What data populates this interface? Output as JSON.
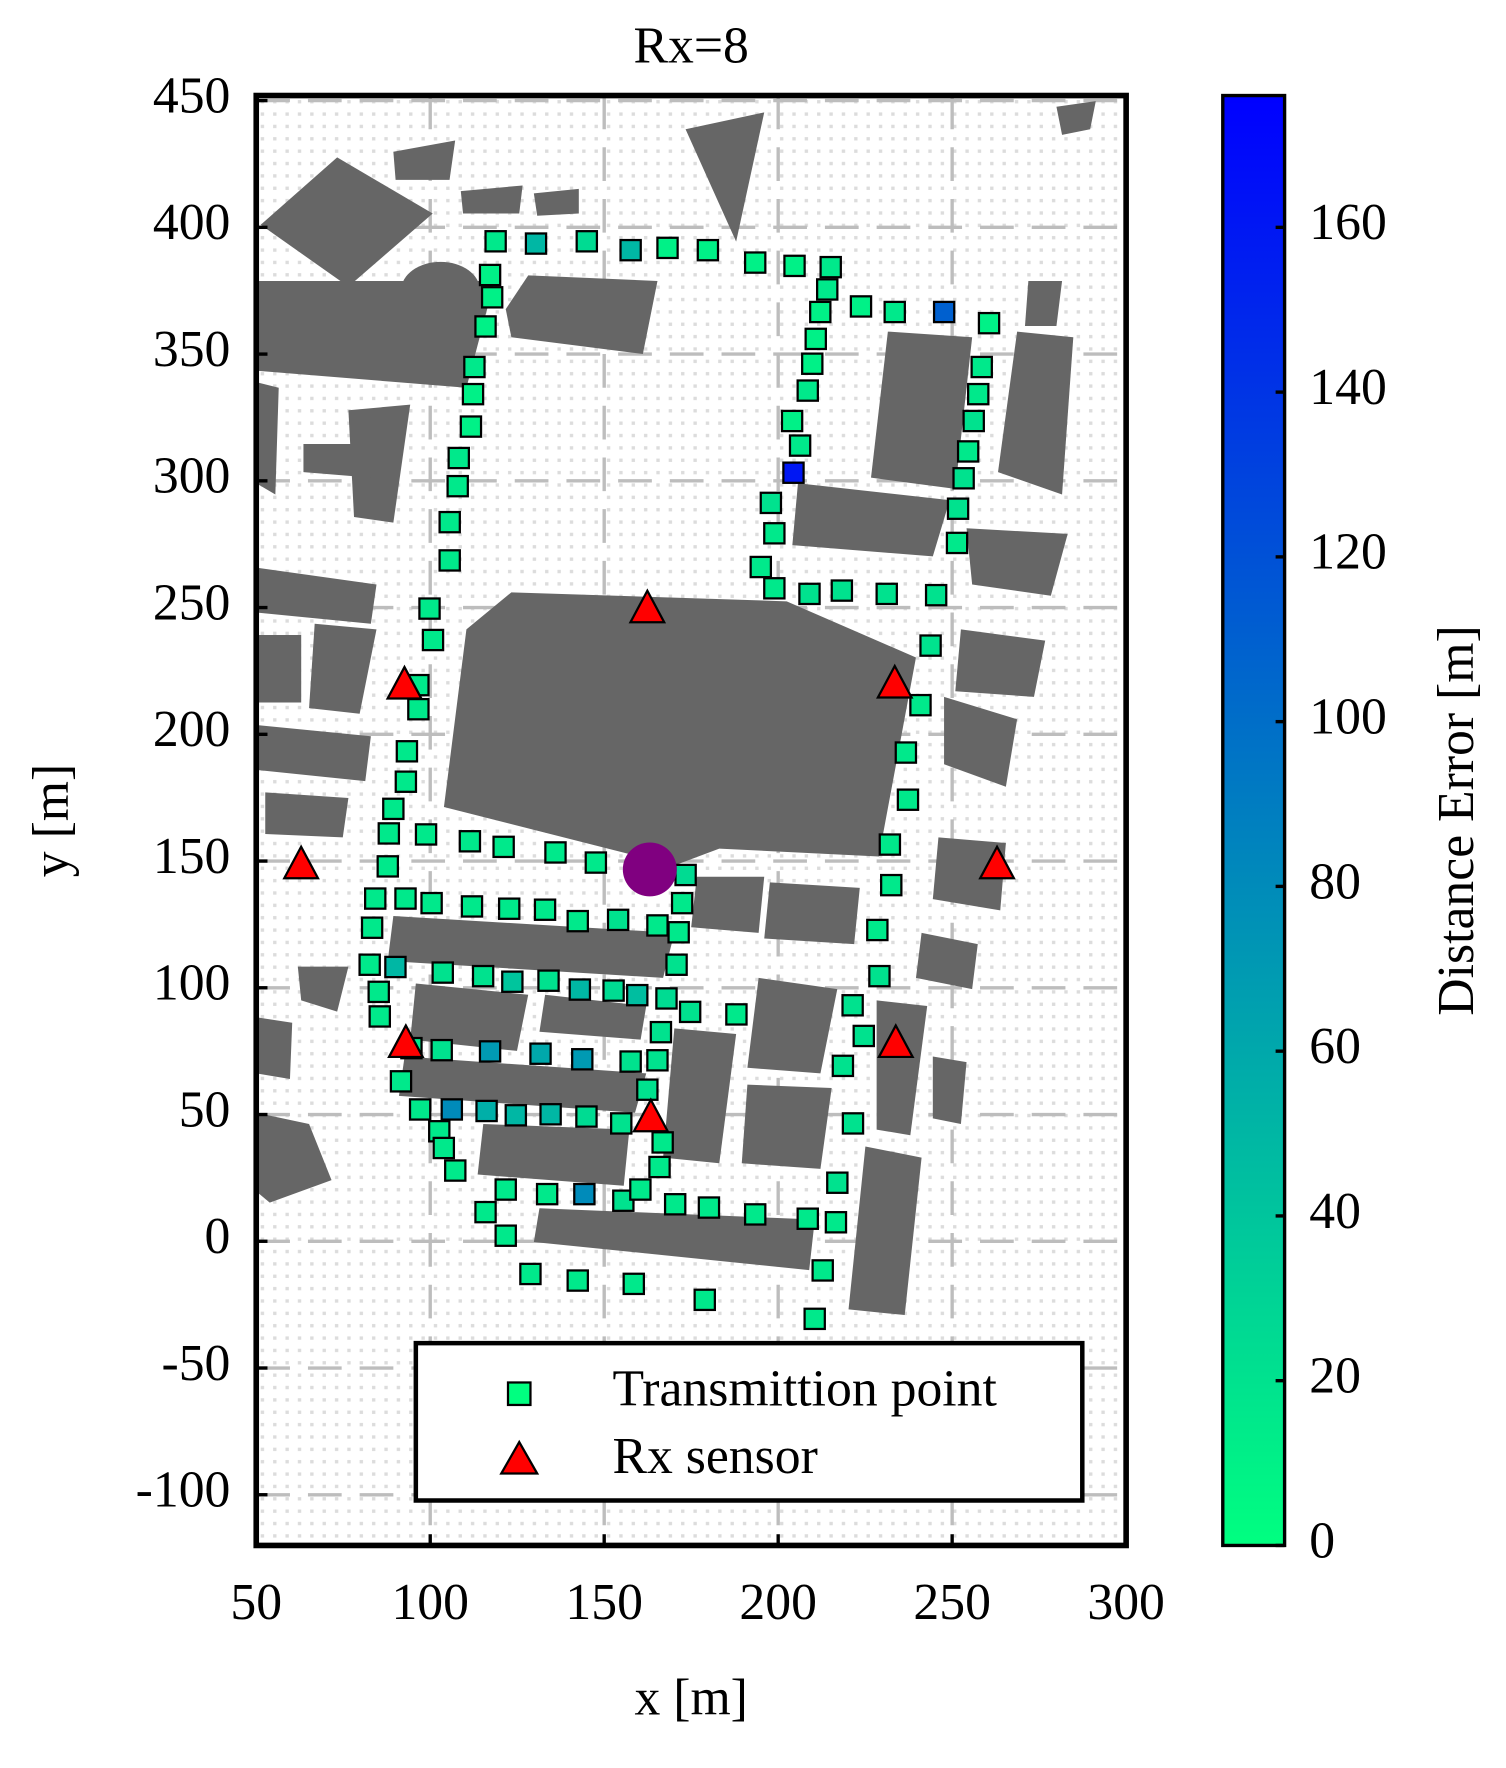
{
  "chart_data": {
    "type": "scatter",
    "title": "Rx=8",
    "x_label": "x [m]",
    "y_label": "y [m]",
    "colorbar_label": "Distance Error [m]",
    "xlim": [
      50,
      300
    ],
    "ylim": [
      -120,
      452
    ],
    "xticks": [
      50,
      100,
      150,
      200,
      250,
      300
    ],
    "yticks": [
      -100,
      -50,
      0,
      50,
      100,
      150,
      200,
      250,
      300,
      350,
      400,
      450
    ],
    "clim": [
      0,
      176
    ],
    "cticks": [
      0,
      20,
      40,
      60,
      80,
      100,
      120,
      140,
      160
    ],
    "colormap": [
      "#00ff80",
      "#0000ff"
    ],
    "grid": true,
    "legend": "lower right",
    "series": [
      {
        "name": "Transmittion point",
        "marker": "square",
        "x": [
          118.8,
          130.4,
          145.0,
          157.6,
          168.2,
          179.8,
          193.4,
          204.7,
          215.1,
          117.2,
          117.8,
          214.1,
          212.1,
          223.8,
          233.5,
          247.7,
          260.6,
          115.9,
          210.8,
          258.5,
          209.8,
          112.7,
          208.5,
          257.5,
          112.3,
          204.0,
          256.2,
          111.7,
          206.3,
          254.6,
          108.2,
          204.4,
          253.3,
          107.9,
          197.9,
          251.7,
          105.6,
          198.9,
          251.4,
          105.6,
          195.0,
          198.9,
          209.0,
          218.3,
          231.2,
          245.4,
          99.8,
          100.8,
          243.8,
          96.6,
          240.9,
          96.6,
          236.7,
          93.3,
          93.0,
          237.3,
          89.4,
          88.1,
          98.8,
          111.4,
          121.1,
          136.0,
          147.6,
          232.1,
          87.8,
          173.4,
          232.5,
          84.2,
          92.9,
          100.4,
          112.0,
          122.7,
          133.0,
          142.4,
          154.0,
          165.3,
          172.4,
          171.4,
          228.5,
          83.3,
          82.6,
          90.0,
          103.6,
          115.2,
          123.6,
          134.0,
          143.0,
          152.7,
          159.5,
          167.9,
          170.8,
          229.1,
          85.2,
          85.5,
          174.7,
          188.0,
          221.4,
          166.3,
          224.6,
          94.6,
          103.3,
          117.2,
          131.7,
          143.7,
          157.6,
          165.3,
          218.6,
          91.6,
          162.4,
          97.1,
          106.2,
          116.2,
          124.6,
          134.6,
          144.9,
          154.9,
          221.5,
          102.6,
          166.8,
          103.9,
          165.9,
          107.2,
          217.0,
          121.7,
          133.6,
          144.3,
          155.5,
          160.4,
          170.4,
          180.1,
          193.4,
          208.5,
          216.6,
          115.9,
          121.7,
          212.8,
          128.8,
          142.4,
          158.5,
          178.9,
          210.5
        ],
        "y": [
          394.5,
          393.6,
          394.5,
          391.0,
          391.9,
          391.0,
          386.1,
          384.8,
          384.3,
          381.2,
          372.4,
          375.5,
          366.6,
          368.8,
          366.6,
          366.6,
          362.2,
          360.9,
          356.0,
          344.9,
          346.2,
          344.9,
          335.6,
          334.2,
          334.2,
          323.6,
          323.6,
          321.4,
          313.9,
          311.6,
          309.0,
          303.2,
          301.0,
          297.9,
          291.3,
          289.0,
          283.7,
          279.3,
          275.5,
          268.6,
          266.0,
          257.6,
          255.4,
          256.7,
          255.4,
          254.9,
          249.6,
          237.2,
          235.0,
          219.4,
          211.5,
          209.9,
          192.8,
          193.3,
          181.3,
          174.2,
          170.6,
          160.9,
          160.5,
          157.8,
          155.6,
          153.4,
          149.4,
          156.5,
          147.9,
          144.5,
          140.5,
          135.2,
          135.2,
          133.4,
          132.1,
          131.2,
          130.8,
          126.3,
          126.8,
          124.6,
          133.4,
          121.9,
          122.8,
          123.7,
          109.1,
          108.2,
          106.0,
          104.6,
          102.4,
          102.8,
          99.3,
          98.9,
          97.1,
          95.8,
          109.1,
          104.6,
          98.4,
          88.7,
          90.5,
          89.5,
          93.1,
          82.5,
          81.0,
          76.2,
          75.4,
          74.9,
          74.0,
          71.8,
          70.9,
          71.4,
          69.2,
          63.1,
          59.8,
          52.0,
          52.0,
          51.4,
          49.7,
          50.1,
          49.2,
          46.5,
          46.5,
          43.4,
          39.0,
          36.8,
          29.3,
          27.9,
          23.1,
          20.4,
          18.6,
          18.6,
          16.0,
          20.4,
          14.6,
          13.3,
          10.6,
          8.9,
          7.5,
          11.5,
          2.2,
          -11.5,
          -12.9,
          -15.5,
          -16.8,
          -23.1,
          -30.6
        ],
        "error": [
          15,
          50,
          25,
          50,
          10,
          10,
          10,
          10,
          15,
          10,
          10,
          15,
          10,
          10,
          15,
          110,
          10,
          10,
          10,
          15,
          10,
          15,
          15,
          15,
          10,
          10,
          20,
          10,
          15,
          15,
          15,
          160,
          20,
          15,
          20,
          20,
          15,
          15,
          15,
          15,
          15,
          15,
          20,
          20,
          20,
          20,
          15,
          15,
          20,
          15,
          15,
          15,
          15,
          15,
          15,
          15,
          15,
          15,
          15,
          15,
          15,
          15,
          15,
          15,
          15,
          25,
          15,
          15,
          15,
          15,
          15,
          15,
          15,
          15,
          20,
          15,
          15,
          15,
          15,
          15,
          15,
          50,
          20,
          20,
          40,
          20,
          50,
          25,
          45,
          25,
          20,
          20,
          15,
          15,
          20,
          15,
          20,
          20,
          20,
          15,
          20,
          70,
          60,
          70,
          20,
          20,
          20,
          15,
          20,
          15,
          80,
          55,
          50,
          50,
          25,
          20,
          20,
          15,
          15,
          15,
          15,
          15,
          20,
          15,
          15,
          80,
          20,
          15,
          15,
          15,
          15,
          15,
          15,
          15,
          15,
          15,
          15,
          15,
          15,
          15,
          15
        ]
      },
      {
        "name": "Rx sensor",
        "marker": "triangle",
        "color": "#ff0000",
        "x": [
          162.4,
          92.6,
          233.5,
          62.9,
          262.9,
          93.0,
          233.8,
          163.4
        ],
        "y": [
          249.1,
          219.0,
          219.4,
          148.1,
          148.1,
          77.6,
          77.6,
          48.3
        ]
      }
    ],
    "target": {
      "x": 163.1,
      "y": 146.7,
      "color": "#800080"
    }
  }
}
